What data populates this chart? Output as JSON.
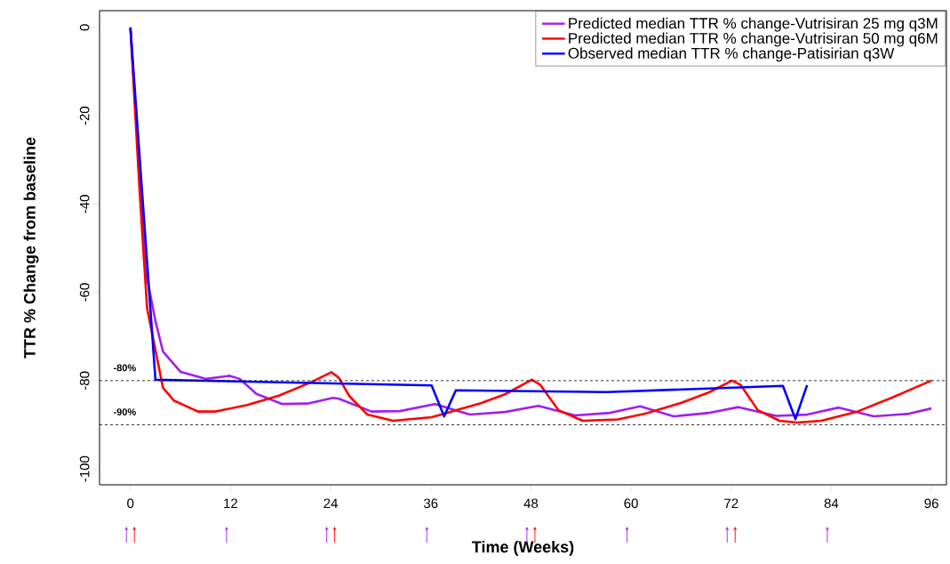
{
  "chart_data": {
    "type": "line",
    "xlabel": "Time (Weeks)",
    "ylabel": "TTR % Change from baseline",
    "xlim": [
      -3.7,
      97.8
    ],
    "ylim": [
      -103.6,
      3.8
    ],
    "xticks": [
      0,
      12,
      24,
      36,
      48,
      60,
      72,
      84,
      96
    ],
    "yticks": [
      -100,
      -80,
      -60,
      -40,
      -20,
      0
    ],
    "legend": "top right",
    "grid": false,
    "marker": "none",
    "line_style": "solid",
    "ref_lines": [
      {
        "axis": "y",
        "value": -80,
        "label": "-80%",
        "color": "#000000",
        "line_style": "dashed"
      },
      {
        "axis": "y",
        "value": -90,
        "label": "-90%",
        "color": "#000000",
        "line_style": "dashed"
      }
    ],
    "series": [
      {
        "name": "Predicted median TTR % change-Vutrisiran 25 mg q3M",
        "color": "#a020f0",
        "x": [
          0,
          1.8,
          3.0,
          3.9,
          6.0,
          9.1,
          11.9,
          13.1,
          15.1,
          18.2,
          21.2,
          24.3,
          25.0,
          28.9,
          32.3,
          36.5,
          40.7,
          44.9,
          48.9,
          53.3,
          57.5,
          61.1,
          65.1,
          69.4,
          72.9,
          77.4,
          81.1,
          84.9,
          89.1,
          93.3,
          96
        ],
        "values": [
          0,
          -55,
          -66.5,
          -73.4,
          -78,
          -79.6,
          -78.9,
          -79.6,
          -83,
          -85.3,
          -85.2,
          -83.9,
          -84.1,
          -87,
          -86.9,
          -85.3,
          -87.7,
          -87.1,
          -85.7,
          -87.9,
          -87.3,
          -85.8,
          -88.1,
          -87.3,
          -86,
          -88,
          -87.7,
          -86.1,
          -88.1,
          -87.5,
          -86.3
        ]
      },
      {
        "name": "Predicted median TTR % change-Vutrisiran 50 mg q6M",
        "color": "#ff0000",
        "x": [
          0,
          1.1,
          2.0,
          3.9,
          5.2,
          8.1,
          10.2,
          14.0,
          17.8,
          21.6,
          24.1,
          25.0,
          26.2,
          28.4,
          31.5,
          36.1,
          42.0,
          44.9,
          48.1,
          49.1,
          51.3,
          54.2,
          58.4,
          61.7,
          65.9,
          69.3,
          72.1,
          73.1,
          75.2,
          77.8,
          79.9,
          82.8,
          87.0,
          91.2,
          96
        ],
        "values": [
          0,
          -37,
          -63.6,
          -81.6,
          -84.5,
          -87,
          -87,
          -85.5,
          -83.4,
          -80.4,
          -78.1,
          -79.4,
          -83.4,
          -87.7,
          -89.1,
          -88.3,
          -85.1,
          -83.1,
          -79.8,
          -80.9,
          -86.7,
          -89.1,
          -88.8,
          -87.5,
          -85.1,
          -82.7,
          -80,
          -80.9,
          -86.7,
          -89.1,
          -89.5,
          -89.1,
          -87.1,
          -83.9,
          -80
        ]
      },
      {
        "name": "Observed median TTR % change-Patisirian q3W",
        "color": "#0000ff",
        "x": [
          0,
          3.0,
          36.1,
          37.6,
          39.0,
          57.1,
          78.2,
          79.7,
          81.1
        ],
        "values": [
          0,
          -79.8,
          -81.1,
          -88.1,
          -82.2,
          -82.6,
          -81.2,
          -88.7,
          -81
        ]
      }
    ]
  }
}
